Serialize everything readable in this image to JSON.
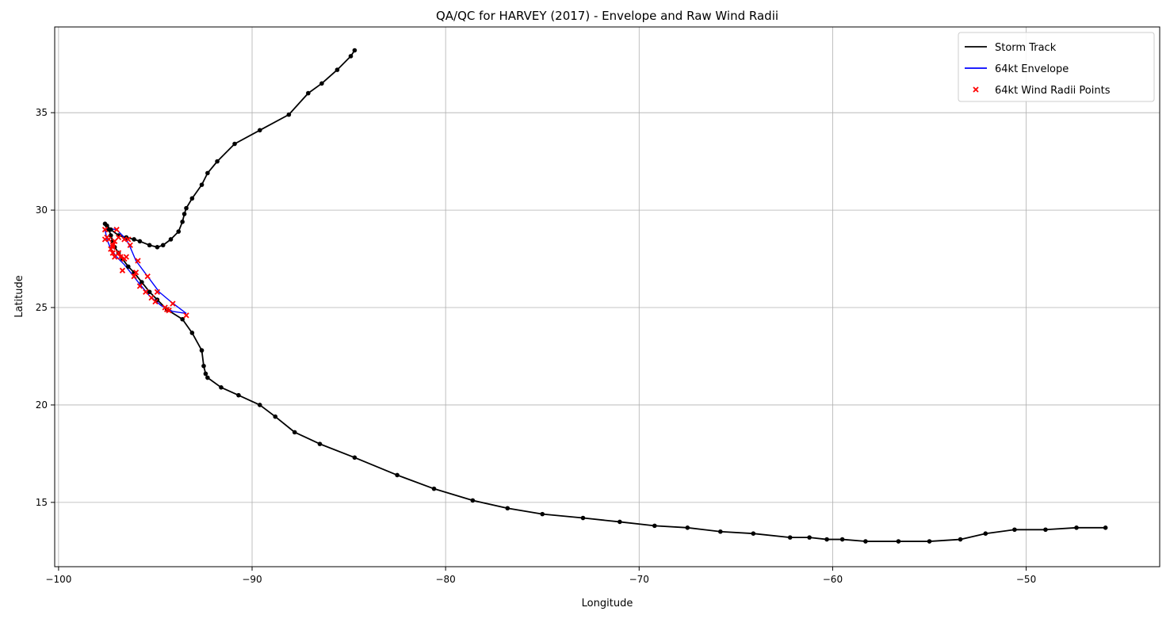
{
  "chart_data": {
    "type": "line",
    "title": "QA/QC for HARVEY (2017) - Envelope and Raw Wind Radii",
    "xlabel": "Longitude",
    "ylabel": "Latitude",
    "xlim": [
      -100.2,
      -43.1
    ],
    "ylim": [
      11.7,
      39.4
    ],
    "xticks": [
      -100,
      -90,
      -80,
      -70,
      -60,
      -50
    ],
    "xtick_labels": [
      "−100",
      "−90",
      "−80",
      "−70",
      "−60",
      "−50"
    ],
    "yticks": [
      15,
      20,
      25,
      30,
      35
    ],
    "ytick_labels": [
      "15",
      "20",
      "25",
      "30",
      "35"
    ],
    "grid": true,
    "legend_position": "top-right",
    "legend": [
      {
        "label": "Storm Track",
        "kind": "line",
        "color": "#000000"
      },
      {
        "label": "64kt Envelope",
        "kind": "line",
        "color": "#0000ff"
      },
      {
        "label": "64kt Wind Radii Points",
        "kind": "marker",
        "color": "#ff0000"
      }
    ],
    "series": [
      {
        "name": "Storm Track",
        "color": "#000000",
        "points": [
          [
            -45.9,
            13.7
          ],
          [
            -47.4,
            13.7
          ],
          [
            -49.0,
            13.6
          ],
          [
            -50.6,
            13.6
          ],
          [
            -52.1,
            13.4
          ],
          [
            -53.4,
            13.1
          ],
          [
            -55.0,
            13.0
          ],
          [
            -56.6,
            13.0
          ],
          [
            -58.3,
            13.0
          ],
          [
            -59.5,
            13.1
          ],
          [
            -60.3,
            13.1
          ],
          [
            -61.2,
            13.2
          ],
          [
            -62.2,
            13.2
          ],
          [
            -64.1,
            13.4
          ],
          [
            -65.8,
            13.5
          ],
          [
            -67.5,
            13.7
          ],
          [
            -69.2,
            13.8
          ],
          [
            -71.0,
            14.0
          ],
          [
            -72.9,
            14.2
          ],
          [
            -75.0,
            14.4
          ],
          [
            -76.8,
            14.7
          ],
          [
            -78.6,
            15.1
          ],
          [
            -80.6,
            15.7
          ],
          [
            -82.5,
            16.4
          ],
          [
            -84.7,
            17.3
          ],
          [
            -86.5,
            18.0
          ],
          [
            -87.8,
            18.6
          ],
          [
            -88.8,
            19.4
          ],
          [
            -89.6,
            20.0
          ],
          [
            -90.7,
            20.5
          ],
          [
            -91.6,
            20.9
          ],
          [
            -92.3,
            21.4
          ],
          [
            -92.4,
            21.6
          ],
          [
            -92.5,
            22.0
          ],
          [
            -92.6,
            22.8
          ],
          [
            -93.1,
            23.7
          ],
          [
            -93.6,
            24.4
          ],
          [
            -94.4,
            24.9
          ],
          [
            -94.9,
            25.4
          ],
          [
            -95.3,
            25.8
          ],
          [
            -95.7,
            26.3
          ],
          [
            -96.1,
            26.8
          ],
          [
            -96.4,
            27.1
          ],
          [
            -96.7,
            27.5
          ],
          [
            -96.9,
            27.8
          ],
          [
            -97.1,
            28.1
          ],
          [
            -97.2,
            28.4
          ],
          [
            -97.3,
            28.7
          ],
          [
            -97.4,
            29.0
          ],
          [
            -97.5,
            29.2
          ],
          [
            -97.6,
            29.3
          ],
          [
            -97.3,
            29.0
          ],
          [
            -96.9,
            28.7
          ],
          [
            -96.5,
            28.6
          ],
          [
            -96.1,
            28.5
          ],
          [
            -95.8,
            28.4
          ],
          [
            -95.3,
            28.2
          ],
          [
            -94.9,
            28.1
          ],
          [
            -94.6,
            28.2
          ],
          [
            -94.2,
            28.5
          ],
          [
            -93.8,
            28.9
          ],
          [
            -93.6,
            29.4
          ],
          [
            -93.5,
            29.8
          ],
          [
            -93.4,
            30.1
          ],
          [
            -93.1,
            30.6
          ],
          [
            -92.6,
            31.3
          ],
          [
            -92.3,
            31.9
          ],
          [
            -91.8,
            32.5
          ],
          [
            -90.9,
            33.4
          ],
          [
            -89.6,
            34.1
          ],
          [
            -88.1,
            34.9
          ],
          [
            -87.1,
            36.0
          ],
          [
            -86.4,
            36.5
          ],
          [
            -85.6,
            37.2
          ],
          [
            -84.9,
            37.9
          ],
          [
            -84.7,
            38.2
          ]
        ]
      },
      {
        "name": "64kt Envelope",
        "color": "#0000ff",
        "points": [
          [
            -93.4,
            24.7
          ],
          [
            -94.2,
            25.3
          ],
          [
            -94.8,
            25.8
          ],
          [
            -95.4,
            26.6
          ],
          [
            -96.0,
            27.4
          ],
          [
            -96.3,
            28.1
          ],
          [
            -96.5,
            28.5
          ],
          [
            -97.0,
            29.0
          ],
          [
            -97.4,
            29.05
          ],
          [
            -97.6,
            29.0
          ],
          [
            -97.5,
            28.5
          ],
          [
            -97.3,
            28.0
          ],
          [
            -97.0,
            27.6
          ],
          [
            -96.6,
            27.2
          ],
          [
            -96.2,
            26.7
          ],
          [
            -95.8,
            26.2
          ],
          [
            -95.3,
            25.6
          ],
          [
            -94.7,
            25.1
          ],
          [
            -94.1,
            24.8
          ],
          [
            -93.4,
            24.7
          ]
        ]
      },
      {
        "name": "64kt Wind Radii Points",
        "color": "#ff0000",
        "points": [
          [
            -93.4,
            24.6
          ],
          [
            -94.1,
            25.2
          ],
          [
            -94.4,
            24.9
          ],
          [
            -94.5,
            25.0
          ],
          [
            -94.3,
            24.85
          ],
          [
            -94.9,
            25.8
          ],
          [
            -95.0,
            25.3
          ],
          [
            -95.2,
            25.5
          ],
          [
            -95.4,
            26.6
          ],
          [
            -95.5,
            25.8
          ],
          [
            -95.8,
            26.1
          ],
          [
            -95.9,
            27.4
          ],
          [
            -96.0,
            26.8
          ],
          [
            -96.1,
            26.6
          ],
          [
            -96.3,
            28.2
          ],
          [
            -96.4,
            28.5
          ],
          [
            -96.5,
            27.6
          ],
          [
            -96.6,
            27.5
          ],
          [
            -96.7,
            26.9
          ],
          [
            -96.6,
            28.5
          ],
          [
            -96.8,
            27.6
          ],
          [
            -96.9,
            28.6
          ],
          [
            -96.9,
            27.8
          ],
          [
            -97.0,
            29.0
          ],
          [
            -97.1,
            27.6
          ],
          [
            -97.1,
            28.4
          ],
          [
            -97.2,
            28.1
          ],
          [
            -97.2,
            27.8
          ],
          [
            -97.3,
            28.0
          ],
          [
            -97.4,
            28.5
          ],
          [
            -97.5,
            28.6
          ],
          [
            -97.6,
            28.5
          ],
          [
            -97.6,
            29.0
          ],
          [
            -97.2,
            28.2
          ]
        ]
      }
    ]
  }
}
